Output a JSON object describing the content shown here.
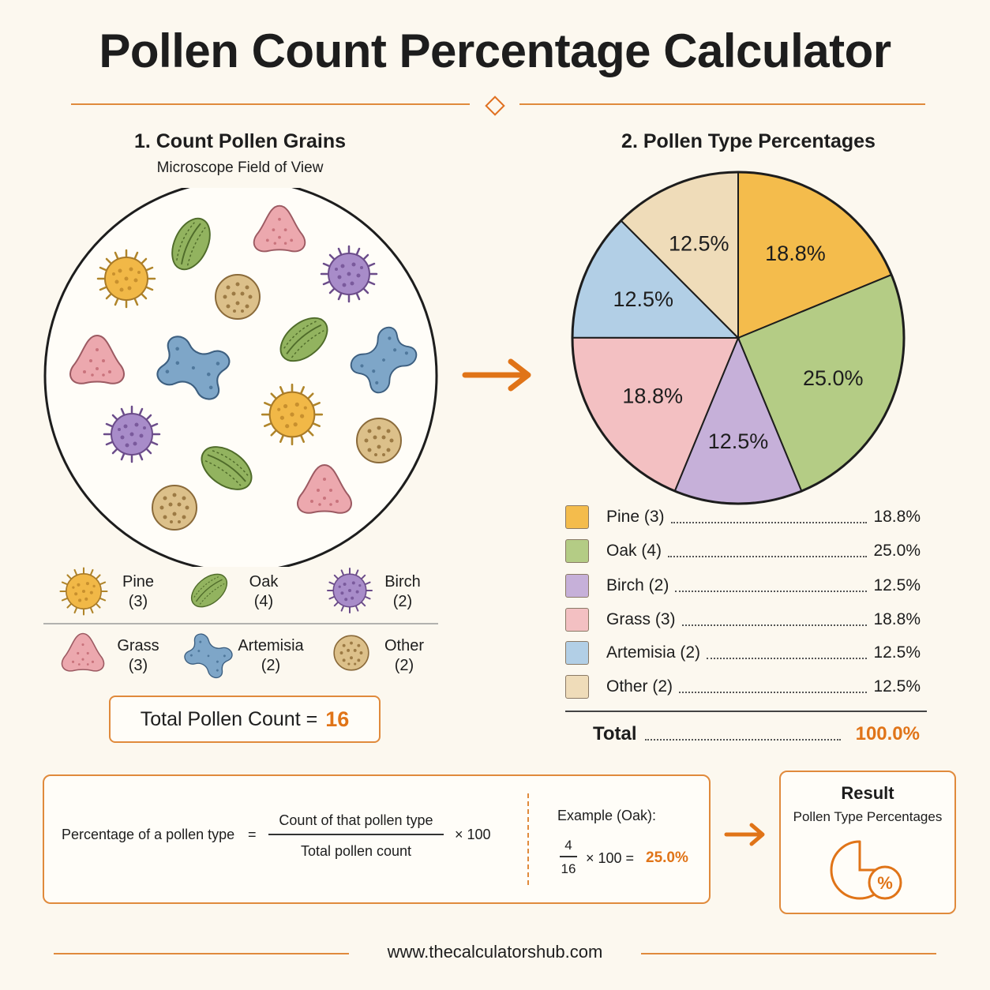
{
  "title": "Pollen Count Percentage Calculator",
  "left": {
    "heading": "1. Count Pollen Grains",
    "subheading": "Microscope Field of View",
    "legend": [
      {
        "name": "Pine",
        "count": "(3)",
        "color": "#f1b847",
        "icon": "spiky-pollen-icon"
      },
      {
        "name": "Oak",
        "count": "(4)",
        "color": "#92b35f",
        "icon": "oval-pollen-icon"
      },
      {
        "name": "Birch",
        "count": "(2)",
        "color": "#a88cc9",
        "icon": "spiky-pollen-icon"
      },
      {
        "name": "Grass",
        "count": "(3)",
        "color": "#eca8ae",
        "icon": "triangle-pollen-icon"
      },
      {
        "name": "Artemisia",
        "count": "(2)",
        "color": "#7ea6c8",
        "icon": "dumbbell-pollen-icon"
      },
      {
        "name": "Other",
        "count": "(2)",
        "color": "#dcc08a",
        "icon": "round-pollen-icon"
      }
    ],
    "total_label": "Total Pollen Count =",
    "total_value": "16"
  },
  "right": {
    "heading": "2. Pollen Type Percentages",
    "rows": [
      {
        "name": "Pine (3)",
        "value": "18.8%",
        "color": "#f4bc4c"
      },
      {
        "name": "Oak (4)",
        "value": "25.0%",
        "color": "#b4cc85"
      },
      {
        "name": "Birch (2)",
        "value": "12.5%",
        "color": "#c6b0d9"
      },
      {
        "name": "Grass (3)",
        "value": "18.8%",
        "color": "#f3c0c2"
      },
      {
        "name": "Artemisia (2)",
        "value": "12.5%",
        "color": "#b2cfe6"
      },
      {
        "name": "Other (2)",
        "value": "12.5%",
        "color": "#efdcb9"
      }
    ],
    "total_label": "Total",
    "total_value": "100.0%"
  },
  "chart_data": {
    "type": "pie",
    "labels": [
      "Pine",
      "Oak",
      "Birch",
      "Grass",
      "Artemisia",
      "Other"
    ],
    "values": [
      18.8,
      25.0,
      12.5,
      18.8,
      12.5,
      12.5
    ],
    "value_labels": [
      "18.8%",
      "25.0%",
      "12.5%",
      "18.8%",
      "12.5%",
      "12.5%"
    ],
    "colors": [
      "#f4bc4c",
      "#b4cc85",
      "#c6b0d9",
      "#f3c0c2",
      "#b2cfe6",
      "#efdcb9"
    ],
    "start_angle_deg": 0,
    "direction": "clockwise",
    "legend": "below"
  },
  "formula": {
    "lhs": "Percentage of a pollen type",
    "equals": "=",
    "numerator": "Count of that pollen type",
    "denominator": "Total pollen count",
    "times": "× 100",
    "example_label": "Example (Oak):",
    "example_num": "4",
    "example_den": "16",
    "example_times": "× 100 =",
    "example_result": "25.0%"
  },
  "result": {
    "title": "Result",
    "subtitle": "Pollen Type Percentages",
    "icon": "percent-chart-icon"
  },
  "footer": "www.thecalculatorshub.com",
  "accent_color": "#e07418"
}
